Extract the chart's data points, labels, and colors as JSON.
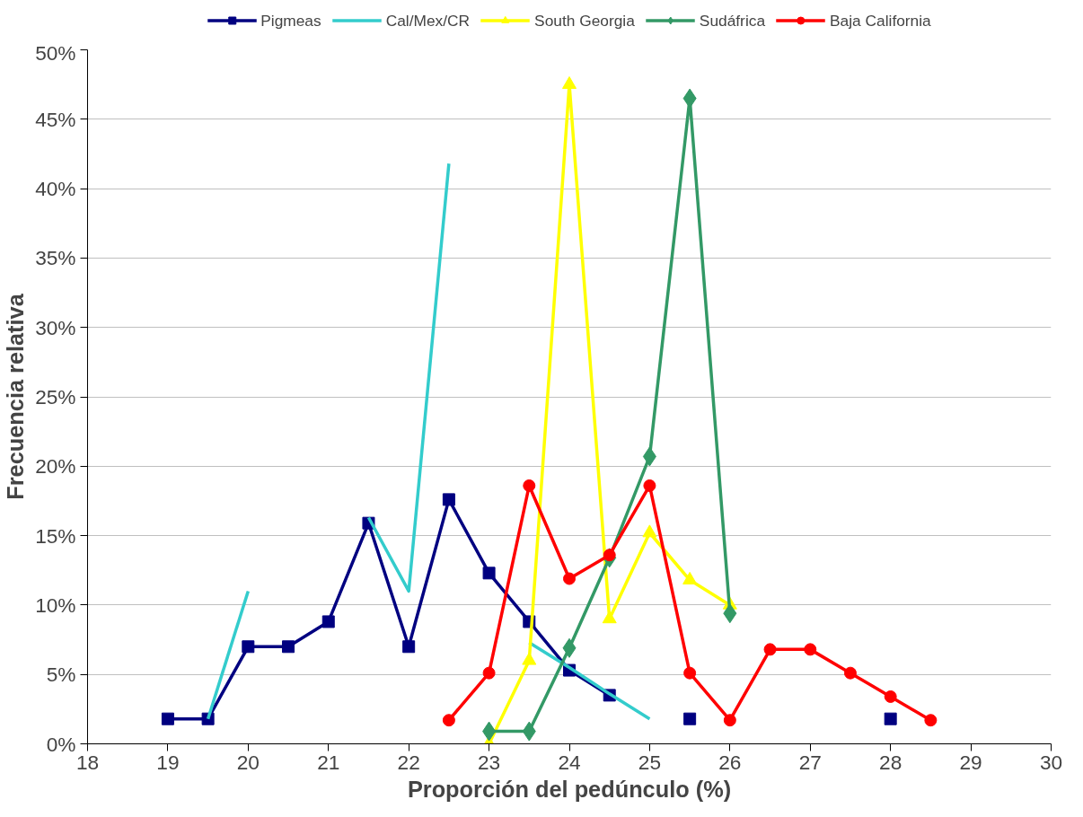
{
  "chart_data": {
    "type": "line",
    "xlabel": "Proporción del pedúnculo (%)",
    "ylabel": "Frecuencia relativa",
    "x": [
      19,
      19.5,
      20,
      20.5,
      21,
      21.5,
      22,
      22.5,
      23,
      23.5,
      24,
      24.5,
      25,
      25.5,
      26,
      26.5,
      27,
      27.5,
      28,
      28.5
    ],
    "series": [
      {
        "name": "Pigmeas",
        "color": "#000080",
        "marker": "square",
        "values": [
          1.8,
          1.8,
          7.0,
          7.0,
          8.8,
          15.9,
          7.0,
          17.6,
          12.3,
          8.8,
          5.3,
          3.5,
          null,
          1.8,
          null,
          null,
          null,
          null,
          1.8,
          null
        ]
      },
      {
        "name": "Cal/Mex/CR",
        "color": "#33cccc",
        "marker": "none",
        "values": [
          null,
          1.8,
          11.0,
          null,
          null,
          16.3,
          11.0,
          41.8,
          null,
          7.3,
          5.5,
          3.6,
          1.8,
          null,
          null,
          null,
          null,
          null,
          null,
          null
        ]
      },
      {
        "name": "South Georgia",
        "color": "#ffff00",
        "marker": "triangle",
        "values": [
          null,
          null,
          null,
          null,
          null,
          null,
          null,
          null,
          0.0,
          6.0,
          47.5,
          9.0,
          15.2,
          11.8,
          10.0,
          null,
          null,
          null,
          null,
          null
        ]
      },
      {
        "name": "Sudáfrica",
        "color": "#339966",
        "marker": "diamond",
        "values": [
          null,
          null,
          null,
          null,
          null,
          null,
          null,
          null,
          0.9,
          0.9,
          6.9,
          13.4,
          20.7,
          46.5,
          9.4,
          null,
          null,
          null,
          null,
          null
        ]
      },
      {
        "name": "Baja California",
        "color": "#ff0000",
        "marker": "circle",
        "values": [
          null,
          null,
          null,
          null,
          null,
          null,
          null,
          1.7,
          5.1,
          18.6,
          11.9,
          13.6,
          18.6,
          5.1,
          1.7,
          6.8,
          6.8,
          5.1,
          3.4,
          1.7
        ]
      }
    ],
    "xlim": [
      18,
      30
    ],
    "xticks": [
      18,
      19,
      20,
      21,
      22,
      23,
      24,
      25,
      26,
      27,
      28,
      29,
      30
    ],
    "ylim": [
      0,
      50
    ],
    "yticks": [
      {
        "value": 0,
        "label": "0%"
      },
      {
        "value": 5,
        "label": "5%"
      },
      {
        "value": 10,
        "label": "10%"
      },
      {
        "value": 15,
        "label": "15%"
      },
      {
        "value": 20,
        "label": "20%"
      },
      {
        "value": 25,
        "label": "25%"
      },
      {
        "value": 30,
        "label": "30%"
      },
      {
        "value": 35,
        "label": "35%"
      },
      {
        "value": 40,
        "label": "40%"
      },
      {
        "value": 45,
        "label": "45%"
      },
      {
        "value": 50,
        "label": "50%"
      }
    ],
    "grid": "y",
    "legend": "top",
    "line_style": "solid"
  }
}
